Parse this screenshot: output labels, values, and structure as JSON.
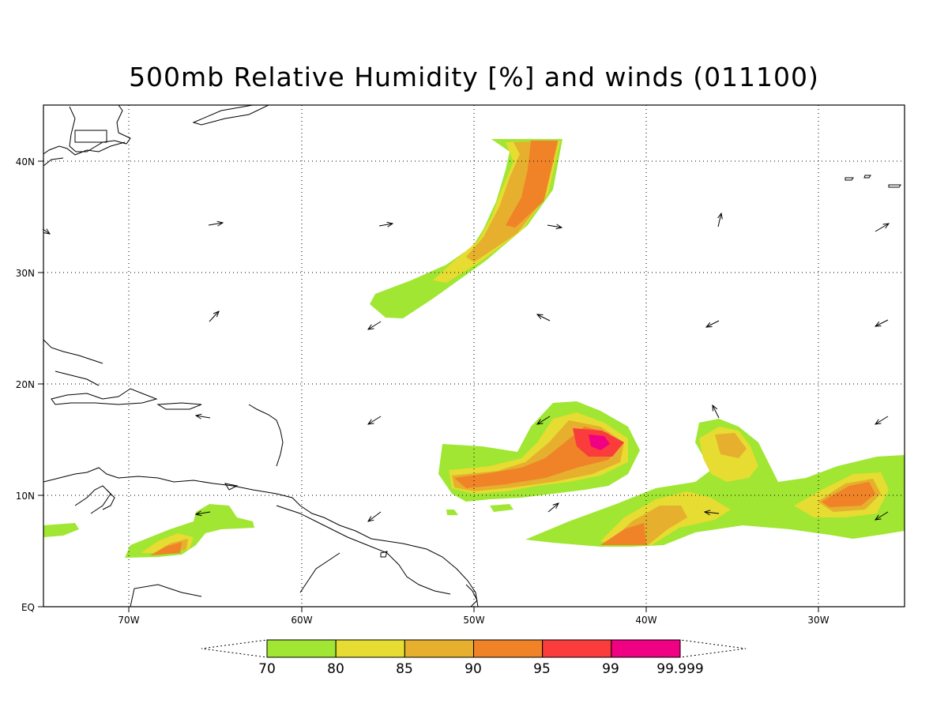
{
  "title": "500mb Relative Humidity [%] and winds (011100)",
  "axes": {
    "x_labels": [
      "70W",
      "60W",
      "50W",
      "40W",
      "30W"
    ],
    "y_labels": [
      "EQ",
      "10N",
      "20N",
      "30N",
      "40N"
    ],
    "lon_range": [
      -75,
      -25
    ],
    "lat_range": [
      0,
      45
    ]
  },
  "colorbar": {
    "labels": [
      "70",
      "80",
      "85",
      "90",
      "95",
      "99",
      "99.999"
    ],
    "colors": [
      "#a0e632",
      "#e6dc32",
      "#e6af2d",
      "#f08228",
      "#fa3c3c",
      "#f00082"
    ]
  },
  "grid": "dotted",
  "wind_arrows": "present"
}
